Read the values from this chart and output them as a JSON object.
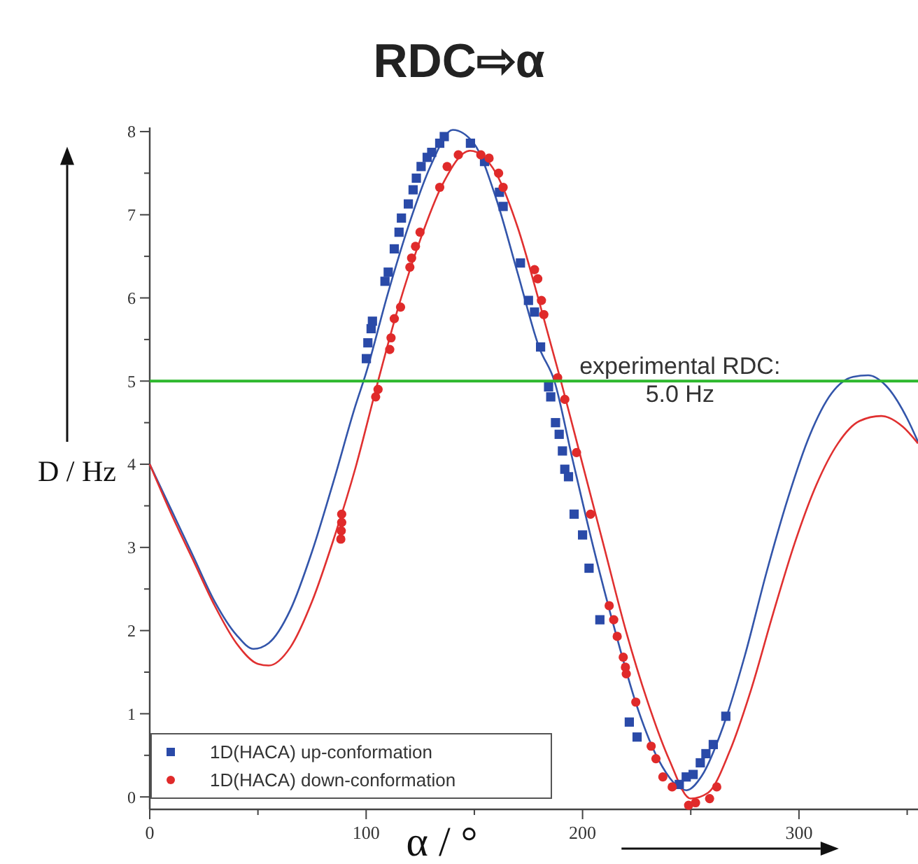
{
  "chart_data": {
    "type": "line",
    "title": "RDC⇨α",
    "xlabel": "α / °",
    "ylabel": "D / Hz",
    "xlim": [
      0,
      355
    ],
    "xticks": [
      0,
      {
        "value": 50,
        "label": null
      },
      100,
      {
        "value": 150,
        "label": null
      },
      200,
      {
        "value": 250,
        "label": null
      },
      300,
      {
        "value": 350,
        "label": null
      }
    ],
    "ylim": [
      -0.15,
      8.05
    ],
    "yticks": [
      0,
      {
        "value": 0.5,
        "label": null
      },
      1,
      {
        "value": 1.5,
        "label": null
      },
      2,
      {
        "value": 2.5,
        "label": null
      },
      3,
      {
        "value": 3.5,
        "label": null
      },
      4,
      {
        "value": 4.5,
        "label": null
      },
      5,
      {
        "value": 5.5,
        "label": null
      },
      6,
      {
        "value": 6.5,
        "label": null
      },
      7,
      {
        "value": 7.5,
        "label": null
      },
      8
    ],
    "grid": false,
    "legend": "bottom left",
    "ref_lines": [
      {
        "axis": "y",
        "value": 5,
        "label": "experimental RDC:\n5.0 Hz",
        "color": "#2db82d"
      }
    ],
    "series": [
      {
        "color": "#3355aa",
        "marker": "none",
        "x": [
          0,
          10,
          20,
          30,
          40,
          48,
          55,
          65,
          75,
          85,
          95,
          100,
          110,
          120,
          130,
          140,
          150,
          160,
          170,
          180,
          187,
          195,
          205,
          215,
          225,
          235,
          248,
          255,
          265,
          275,
          285,
          295,
          305,
          315,
          325,
          332,
          340,
          350,
          355
        ],
        "values": [
          4.0,
          3.45,
          2.9,
          2.35,
          1.95,
          1.78,
          1.85,
          2.25,
          2.95,
          3.8,
          4.7,
          5.1,
          6.05,
          6.9,
          7.6,
          8.02,
          7.85,
          7.2,
          6.3,
          5.4,
          5.0,
          4.1,
          3.0,
          2.0,
          1.1,
          0.45,
          0.08,
          0.25,
          0.85,
          1.7,
          2.7,
          3.6,
          4.35,
          4.85,
          5.05,
          5.07,
          4.95,
          4.55,
          4.27
        ]
      },
      {
        "color": "#e03030",
        "marker": "none",
        "x": [
          0,
          10,
          20,
          30,
          40,
          50,
          55,
          65,
          75,
          85,
          95,
          105,
          115,
          125,
          135,
          148,
          160,
          170,
          180,
          190,
          200,
          210,
          220,
          230,
          240,
          250,
          258,
          268,
          278,
          288,
          298,
          308,
          318,
          328,
          338,
          348,
          355
        ],
        "values": [
          4.0,
          3.4,
          2.85,
          2.3,
          1.85,
          1.6,
          1.58,
          1.8,
          2.35,
          3.1,
          3.95,
          4.95,
          5.9,
          6.7,
          7.35,
          7.77,
          7.5,
          6.85,
          5.95,
          5.0,
          4.0,
          3.0,
          2.0,
          1.15,
          0.45,
          -0.02,
          0.05,
          0.55,
          1.3,
          2.2,
          3.05,
          3.75,
          4.25,
          4.52,
          4.58,
          4.45,
          4.25
        ]
      },
      {
        "type": "scatter",
        "name": "1D(HACA) up-conformation",
        "color": "#2a4aa8",
        "marker": "square",
        "x": [
          100.1,
          100.8,
          102.3,
          102.9,
          108.7,
          110.2,
          113,
          115.2,
          116.3,
          119.5,
          121.7,
          123.2,
          125.4,
          128.2,
          130.3,
          134,
          136.1,
          148.2,
          154.7,
          161.6,
          163.3,
          171.3,
          175,
          177.8,
          180.6,
          184.3,
          185.3,
          187.5,
          189.2,
          190.7,
          191.8,
          193.5,
          196.1,
          200,
          203,
          208,
          221.6,
          225.2,
          244.7,
          247.9,
          251.1,
          254.4,
          257,
          260.4,
          266.2
        ],
        "values": [
          5.27,
          5.46,
          5.63,
          5.72,
          6.2,
          6.31,
          6.59,
          6.79,
          6.96,
          7.13,
          7.3,
          7.44,
          7.58,
          7.69,
          7.75,
          7.86,
          7.94,
          7.86,
          7.64,
          7.27,
          7.1,
          6.42,
          5.97,
          5.83,
          5.41,
          4.93,
          4.81,
          4.5,
          4.36,
          4.16,
          3.94,
          3.85,
          3.4,
          3.15,
          2.75,
          2.13,
          0.9,
          0.72,
          0.15,
          0.24,
          0.27,
          0.41,
          0.52,
          0.63,
          0.97
        ]
      },
      {
        "type": "scatter",
        "name": "1D(HACA) down-conformation",
        "color": "#e02a2a",
        "marker": "circle",
        "x": [
          88.7,
          88.7,
          88.5,
          88.3,
          104.4,
          105.5,
          110.9,
          111.5,
          113,
          115.9,
          120.2,
          121,
          122.8,
          124.9,
          134,
          137.4,
          142.6,
          153,
          156.8,
          161.2,
          163.3,
          177.8,
          179.3,
          181,
          182.1,
          188.5,
          191.8,
          197.2,
          203.7,
          212.3,
          214.4,
          216,
          218.8,
          219.8,
          220.2,
          224.6,
          231.7,
          233.9,
          237.1,
          241.4,
          249,
          252.2,
          258.7,
          262
        ],
        "values": [
          3.4,
          3.3,
          3.2,
          3.1,
          4.81,
          4.9,
          5.38,
          5.52,
          5.75,
          5.89,
          6.37,
          6.48,
          6.62,
          6.79,
          7.33,
          7.58,
          7.72,
          7.72,
          7.68,
          7.5,
          7.33,
          6.34,
          6.23,
          5.97,
          5.8,
          5.04,
          4.78,
          4.14,
          3.4,
          2.3,
          2.13,
          1.93,
          1.68,
          1.56,
          1.48,
          1.14,
          0.61,
          0.46,
          0.24,
          0.12,
          -0.1,
          -0.07,
          -0.02,
          0.12
        ]
      }
    ]
  }
}
